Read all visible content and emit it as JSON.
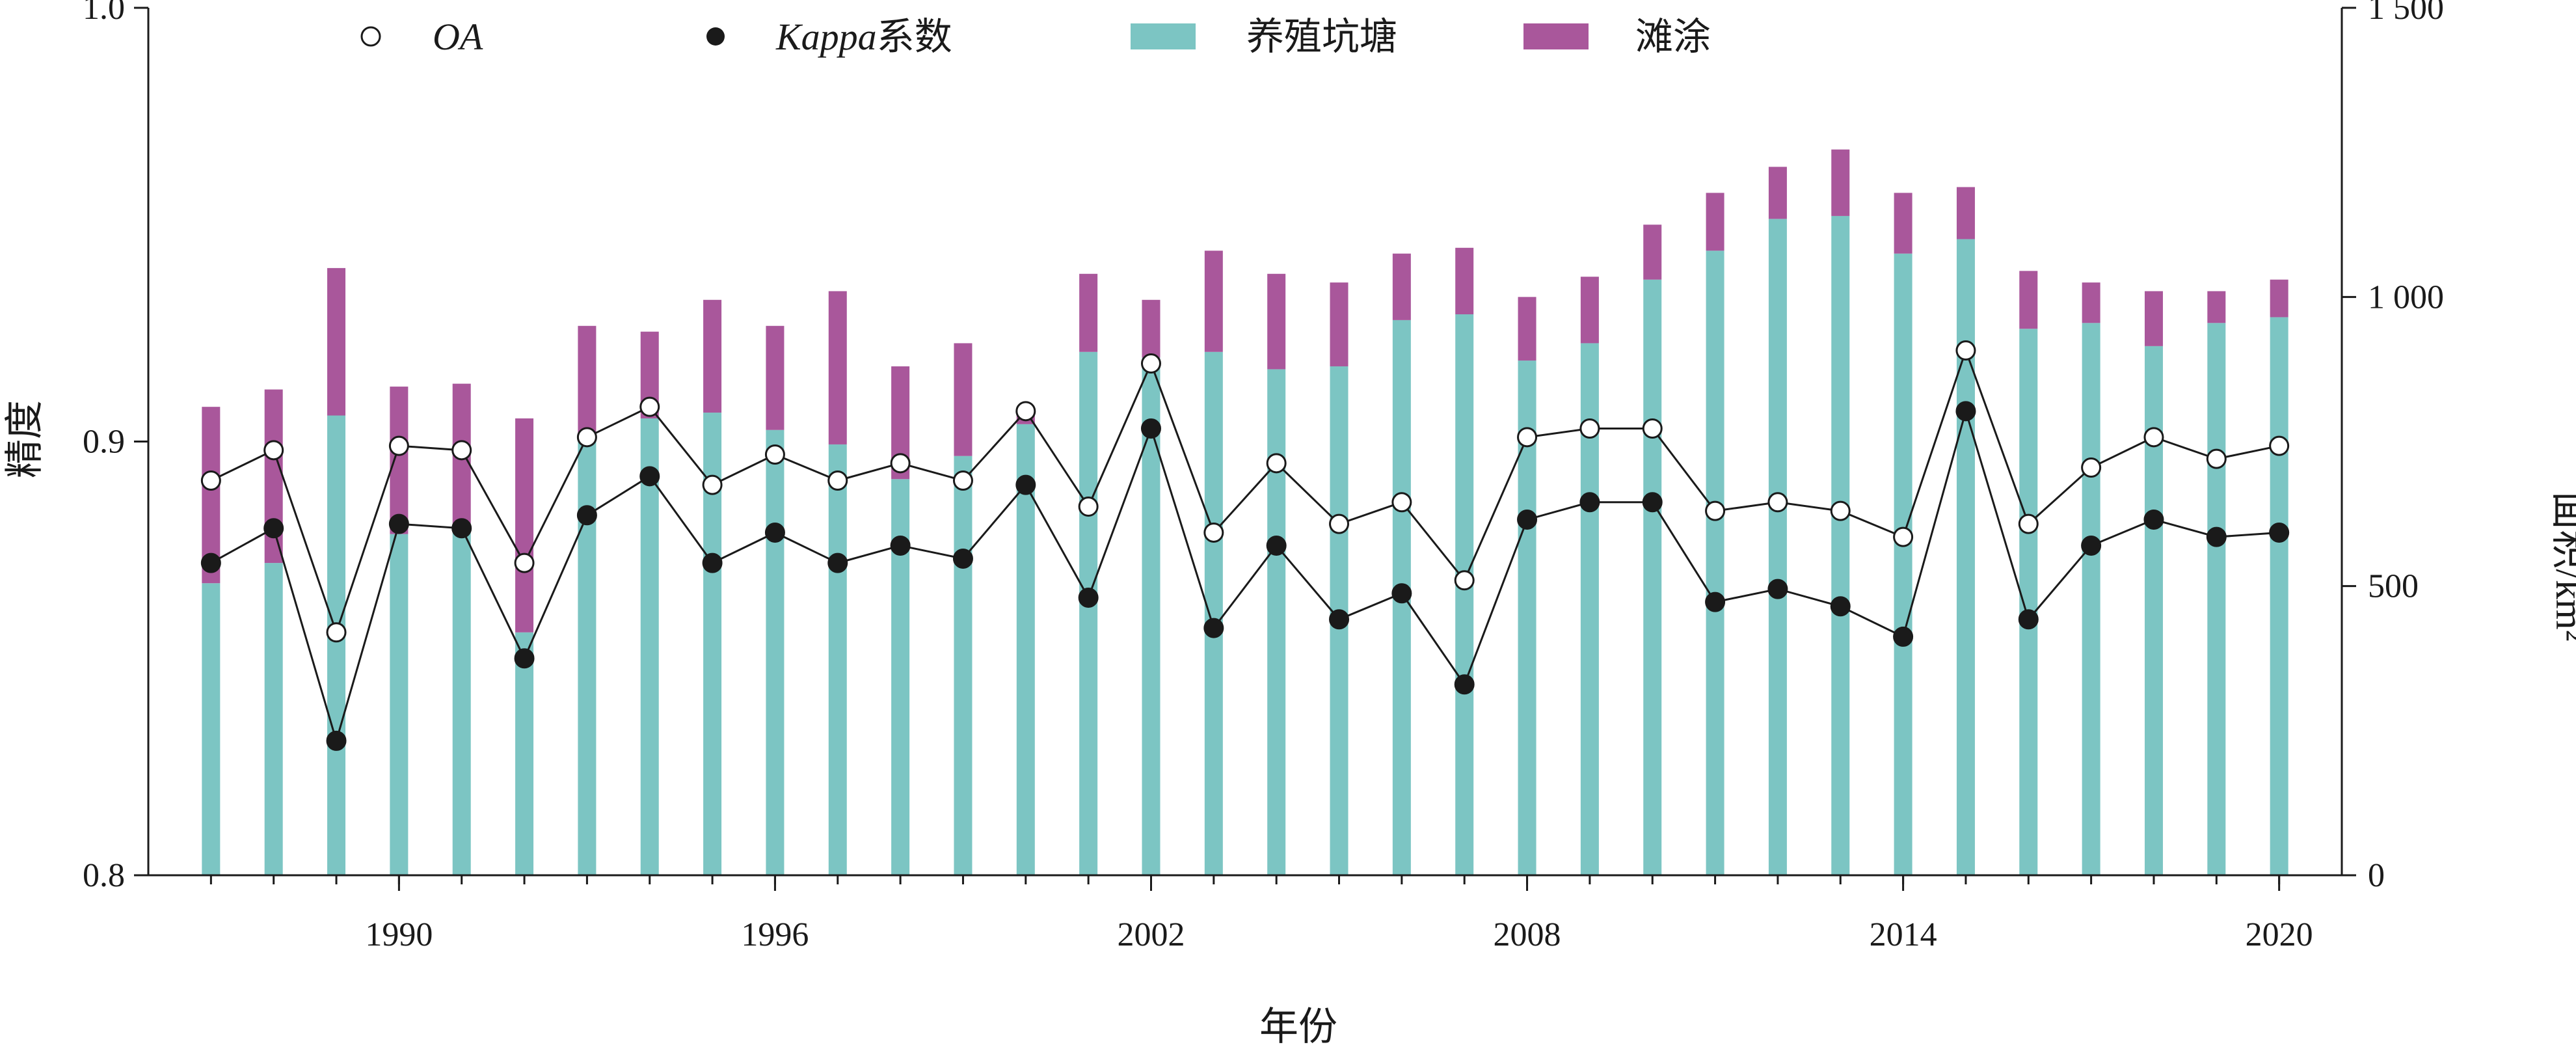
{
  "chart_data": {
    "type": "bar+line",
    "xlabel": "年份",
    "ylabel_left": "精度",
    "ylabel_right": "面积/km²",
    "y_left": {
      "min": 0.8,
      "max": 1.0,
      "ticks": [
        "0.8",
        "0.9",
        "1.0"
      ]
    },
    "y_right": {
      "min": 0,
      "max": 1500,
      "ticks": [
        "0",
        "500",
        "1 000",
        "1 500"
      ]
    },
    "x_ticks": [
      "1990",
      "1996",
      "2002",
      "2008",
      "2014",
      "2020"
    ],
    "x_min": 1986,
    "x_max": 2021,
    "legend": [
      {
        "label_main": "OA",
        "label_suffix": "",
        "kind": "open-circle"
      },
      {
        "label_main": "Kappa",
        "label_suffix": "系数",
        "kind": "filled-circle"
      },
      {
        "label_main": "养殖坑塘",
        "label_suffix": "",
        "kind": "bar-teal"
      },
      {
        "label_main": "滩涂",
        "label_suffix": "",
        "kind": "bar-purple"
      }
    ],
    "colors": {
      "pond": "#7cc5c3",
      "tidal_flat": "#a9579b",
      "line": "#1a1a1a"
    },
    "years": [
      1987,
      1988,
      1989,
      1990,
      1991,
      1992,
      1993,
      1994,
      1995,
      1996,
      1997,
      1998,
      1999,
      2000,
      2001,
      2002,
      2003,
      2004,
      2005,
      2006,
      2007,
      2008,
      2009,
      2010,
      2011,
      2012,
      2013,
      2014,
      2015,
      2016,
      2017,
      2018,
      2019,
      2020
    ],
    "series": [
      {
        "name": "养殖坑塘",
        "values": [
          505,
          540,
          795,
          590,
          600,
          420,
          750,
          790,
          800,
          770,
          745,
          685,
          725,
          780,
          905,
          895,
          905,
          875,
          880,
          960,
          970,
          890,
          920,
          1030,
          1080,
          1135,
          1140,
          1075,
          1100,
          945,
          955,
          915,
          955,
          965
        ]
      },
      {
        "name": "滩涂",
        "values": [
          305,
          300,
          255,
          255,
          250,
          370,
          200,
          150,
          195,
          180,
          265,
          195,
          195,
          20,
          135,
          100,
          175,
          165,
          145,
          115,
          115,
          110,
          115,
          95,
          100,
          90,
          115,
          105,
          90,
          100,
          70,
          95,
          55,
          65
        ]
      },
      {
        "name": "OA",
        "values": [
          0.891,
          0.898,
          0.856,
          0.899,
          0.898,
          0.872,
          0.901,
          0.908,
          0.89,
          0.897,
          0.891,
          0.895,
          0.891,
          0.907,
          0.885,
          0.918,
          0.879,
          0.895,
          0.881,
          0.886,
          0.868,
          0.901,
          0.903,
          0.903,
          0.884,
          0.886,
          0.884,
          0.878,
          0.921,
          0.881,
          0.894,
          0.901,
          0.896,
          0.899
        ]
      },
      {
        "name": "Kappa系数",
        "values": [
          0.872,
          0.88,
          0.831,
          0.881,
          0.88,
          0.85,
          0.883,
          0.892,
          0.872,
          0.879,
          0.872,
          0.876,
          0.873,
          0.89,
          0.864,
          0.903,
          0.857,
          0.876,
          0.859,
          0.865,
          0.844,
          0.882,
          0.886,
          0.886,
          0.863,
          0.866,
          0.862,
          0.855,
          0.907,
          0.859,
          0.876,
          0.882,
          0.878,
          0.879
        ]
      }
    ]
  }
}
